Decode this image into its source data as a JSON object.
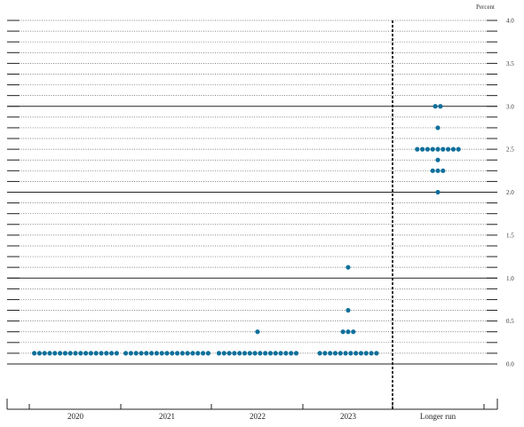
{
  "chart_data": {
    "type": "scatter",
    "unit_label": "Percent",
    "categories": [
      "2020",
      "2021",
      "2022",
      "2023",
      "Longer run"
    ],
    "ylim": [
      0,
      4.0
    ],
    "y_ticks": [
      "0.0",
      "0.5",
      "1.0",
      "1.5",
      "2.0",
      "2.5",
      "3.0",
      "3.5",
      "4.0"
    ],
    "grid": true,
    "dot_color": "#0f6f9b",
    "series": [
      {
        "category": "2020",
        "points": [
          {
            "y": 0.125,
            "count": 17
          }
        ]
      },
      {
        "category": "2021",
        "points": [
          {
            "y": 0.125,
            "count": 17
          }
        ]
      },
      {
        "category": "2022",
        "points": [
          {
            "y": 0.125,
            "count": 16
          },
          {
            "y": 0.375,
            "count": 1
          }
        ]
      },
      {
        "category": "2023",
        "points": [
          {
            "y": 0.125,
            "count": 12
          },
          {
            "y": 0.375,
            "count": 3
          },
          {
            "y": 0.625,
            "count": 1
          },
          {
            "y": 1.125,
            "count": 1
          }
        ]
      },
      {
        "category": "Longer run",
        "points": [
          {
            "y": 2.0,
            "count": 1
          },
          {
            "y": 2.25,
            "count": 3
          },
          {
            "y": 2.375,
            "count": 1
          },
          {
            "y": 2.5,
            "count": 9
          },
          {
            "y": 2.75,
            "count": 1
          },
          {
            "y": 3.0,
            "count": 2
          }
        ]
      }
    ]
  }
}
